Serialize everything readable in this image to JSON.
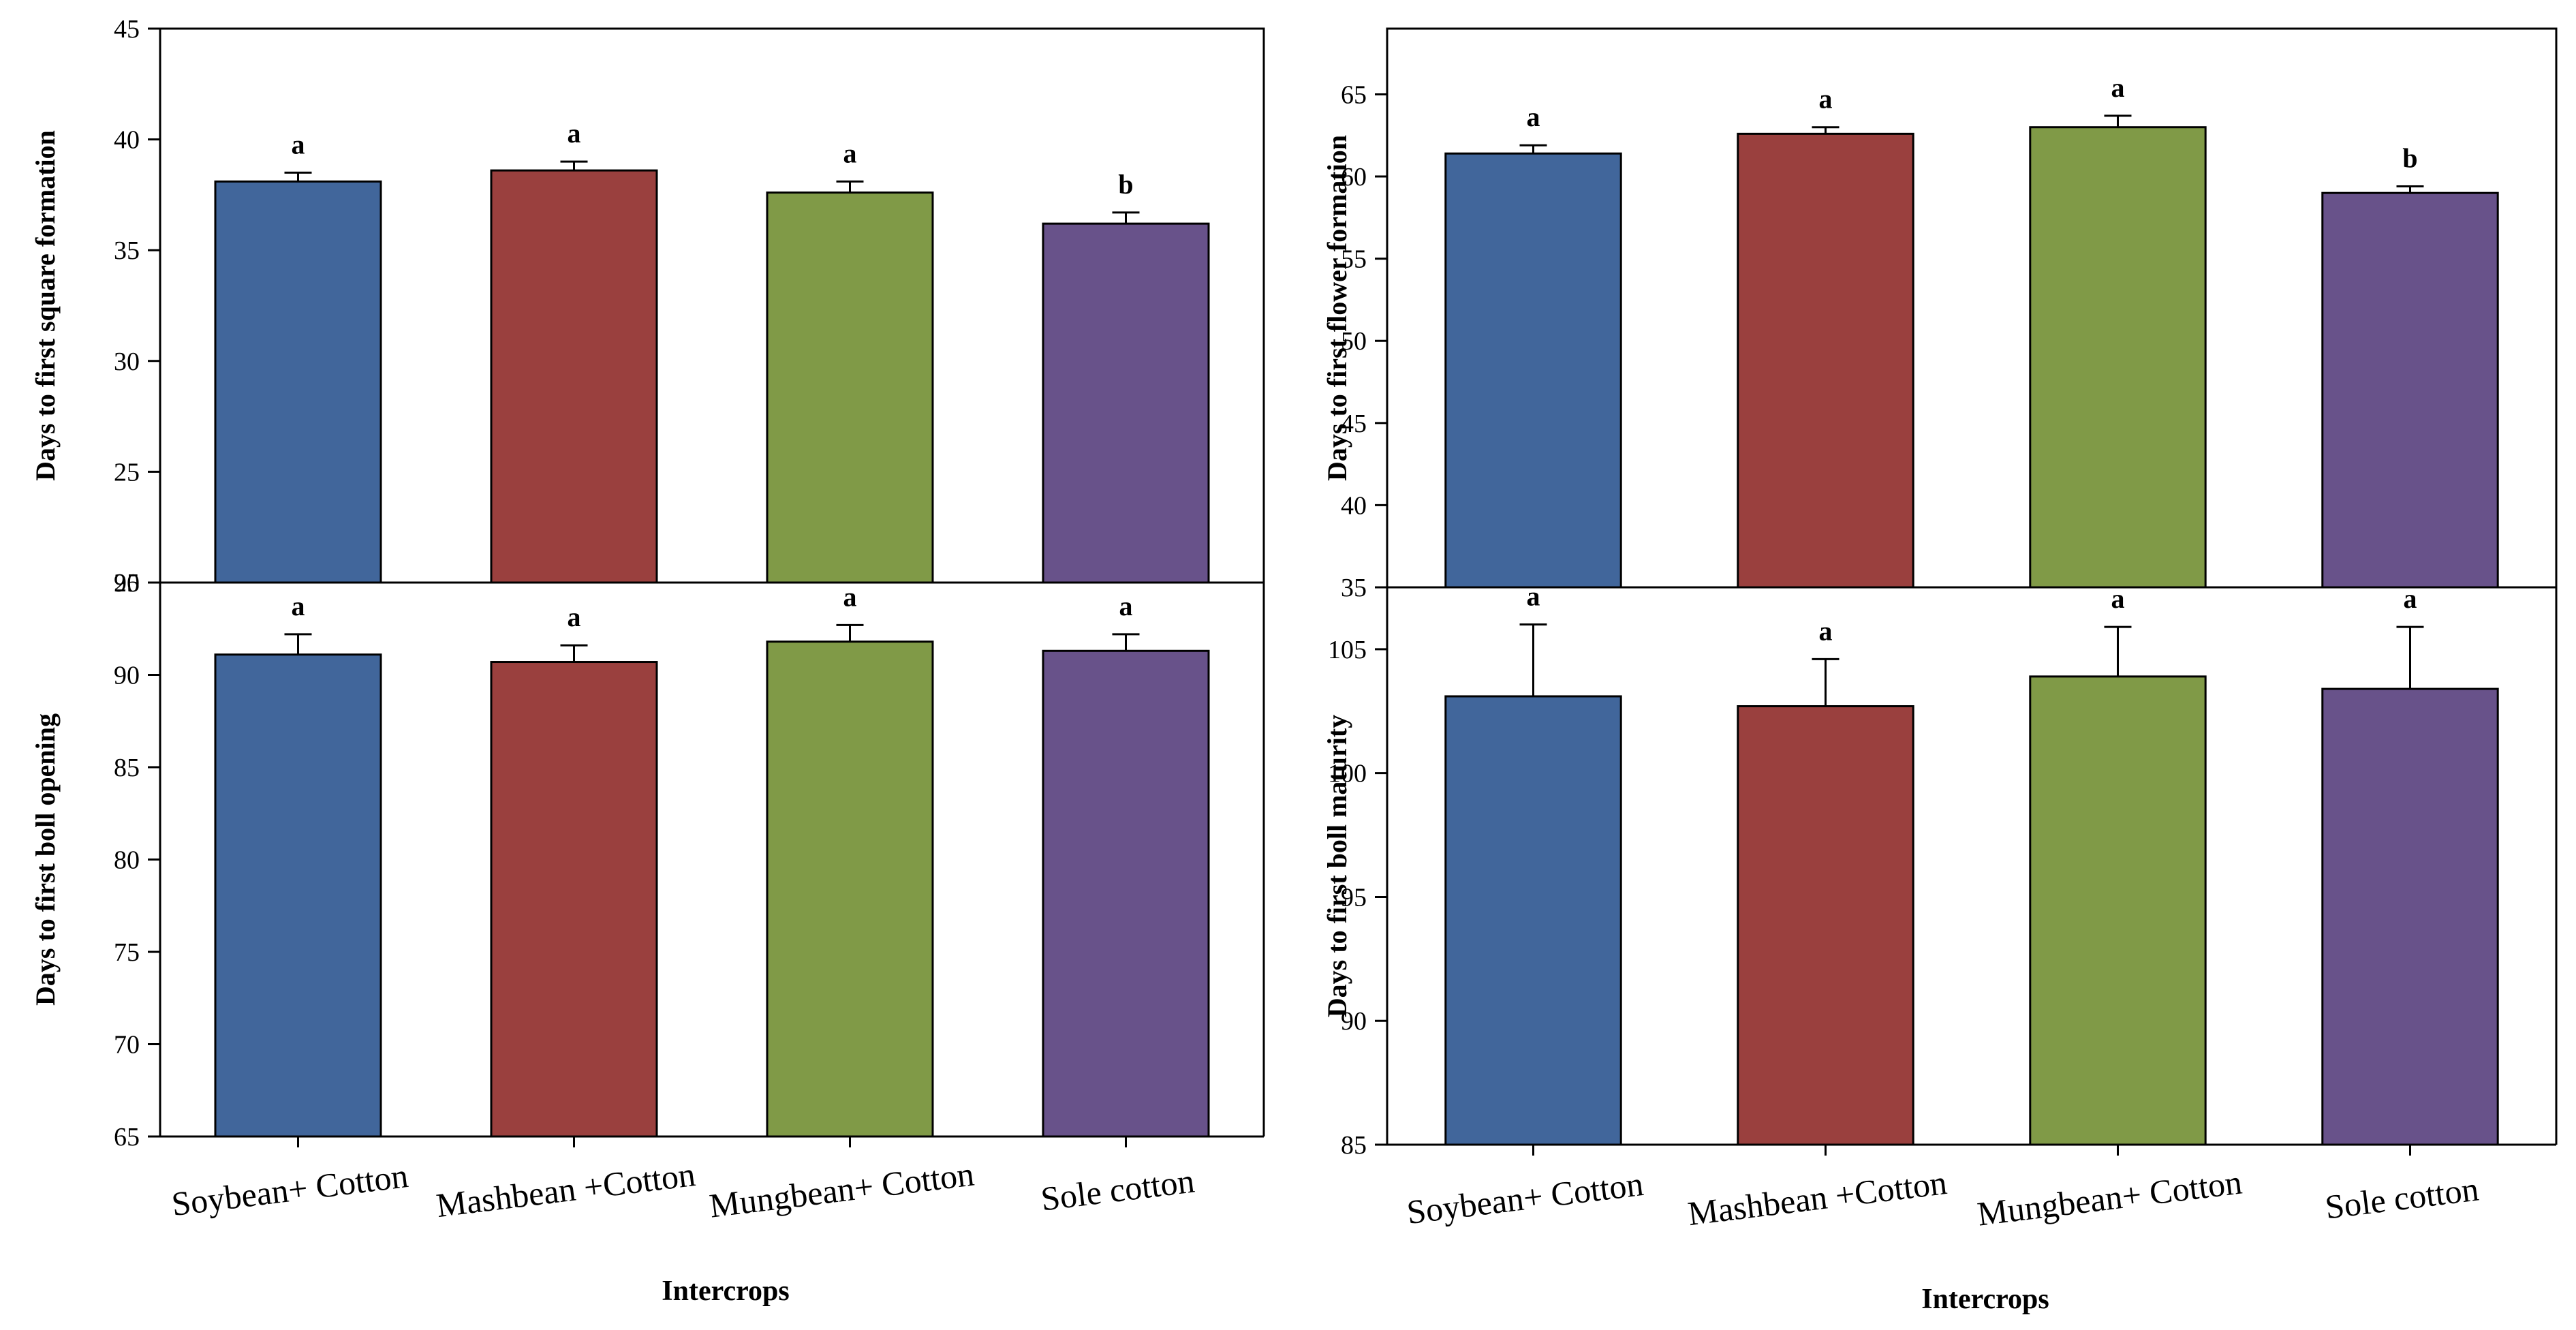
{
  "colors": {
    "series": [
      "#41669b",
      "#9a403e",
      "#809a47",
      "#68528a"
    ],
    "axis": "#000000",
    "background": "#ffffff"
  },
  "chart_data": [
    {
      "type": "bar",
      "categories": [
        "Soybean+ Cotton",
        "Mashbean +Cotton",
        "Mungbean+ Cotton",
        "Sole cotton"
      ],
      "values": [
        38.1,
        38.6,
        37.6,
        36.2
      ],
      "errors": [
        0.4,
        0.4,
        0.5,
        0.5
      ],
      "significance": [
        "a",
        "a",
        "a",
        "b"
      ],
      "ylabel": "Days to first square formation",
      "xlabel": "",
      "ylim": [
        20,
        45
      ],
      "yticks": [
        20,
        25,
        30,
        35,
        40,
        45
      ],
      "grid": false,
      "show_category_labels": false
    },
    {
      "type": "bar",
      "categories": [
        "Soybean+ Cotton",
        "Mashbean +Cotton",
        "Mungbean+ Cotton",
        "Sole cotton"
      ],
      "values": [
        61.4,
        62.6,
        63.0,
        59.0
      ],
      "errors": [
        0.5,
        0.4,
        0.7,
        0.4
      ],
      "significance": [
        "a",
        "a",
        "a",
        "b"
      ],
      "ylabel": "Days to first flower formation",
      "xlabel": "",
      "ylim": [
        35,
        69
      ],
      "yticks": [
        35,
        40,
        45,
        50,
        55,
        60,
        65
      ],
      "grid": false,
      "show_category_labels": false
    },
    {
      "type": "bar",
      "categories": [
        "Soybean+ Cotton",
        "Mashbean +Cotton",
        "Mungbean+ Cotton",
        "Sole cotton"
      ],
      "values": [
        91.1,
        90.7,
        91.8,
        91.3
      ],
      "errors": [
        1.1,
        0.9,
        0.9,
        0.9
      ],
      "significance": [
        "a",
        "a",
        "a",
        "a"
      ],
      "ylabel": "Days to first boll opening",
      "xlabel": "Intercrops",
      "ylim": [
        65,
        95
      ],
      "yticks": [
        65,
        70,
        75,
        80,
        85,
        90,
        95
      ],
      "grid": false,
      "show_category_labels": true
    },
    {
      "type": "bar",
      "categories": [
        "Soybean+ Cotton",
        "Mashbean +Cotton",
        "Mungbean+ Cotton",
        "Sole cotton"
      ],
      "values": [
        103.1,
        102.7,
        103.9,
        103.4
      ],
      "errors": [
        2.9,
        1.9,
        2.0,
        2.5
      ],
      "significance": [
        "a",
        "a",
        "a",
        "a"
      ],
      "ylabel": "Days to first boll maturity",
      "xlabel": "Intercrops",
      "ylim": [
        85,
        107.5
      ],
      "yticks": [
        85,
        90,
        95,
        100,
        105
      ],
      "grid": false,
      "show_category_labels": true
    }
  ]
}
